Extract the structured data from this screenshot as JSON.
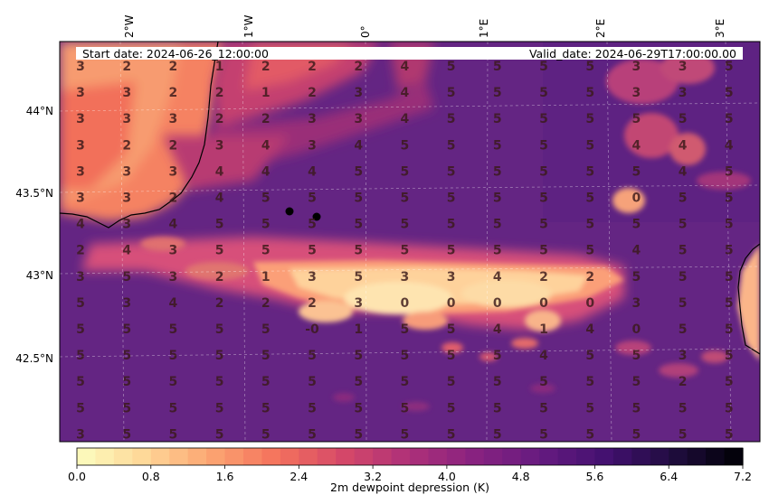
{
  "header": {
    "start_date": "Start date: 2024-06-26_12:00:00",
    "valid_date": "Valid_date: 2024-06-29T17:00:00.00"
  },
  "longitude_labels": [
    "2°W",
    "1°W",
    "0°",
    "1°E",
    "2°E",
    "3°E"
  ],
  "latitude_labels": [
    "44°N",
    "43.5°N",
    "43°N",
    "42.5°N"
  ],
  "grid_values": [
    [
      "3",
      "2",
      "2",
      "1",
      "2",
      "2",
      "2",
      "4",
      "5",
      "5",
      "5",
      "5",
      "3",
      "3",
      "5"
    ],
    [
      "3",
      "3",
      "2",
      "2",
      "1",
      "2",
      "3",
      "4",
      "5",
      "5",
      "5",
      "5",
      "3",
      "3",
      "5"
    ],
    [
      "3",
      "3",
      "3",
      "2",
      "2",
      "3",
      "3",
      "4",
      "5",
      "5",
      "5",
      "5",
      "5",
      "5",
      "5"
    ],
    [
      "3",
      "2",
      "2",
      "3",
      "4",
      "3",
      "4",
      "5",
      "5",
      "5",
      "5",
      "5",
      "4",
      "4",
      "4"
    ],
    [
      "3",
      "3",
      "3",
      "4",
      "4",
      "4",
      "5",
      "5",
      "5",
      "5",
      "5",
      "5",
      "5",
      "4",
      "5"
    ],
    [
      "3",
      "3",
      "2",
      "4",
      "5",
      "5",
      "5",
      "5",
      "5",
      "5",
      "5",
      "5",
      "0",
      "5",
      "5"
    ],
    [
      "4",
      "3",
      "4",
      "5",
      "5",
      "5",
      "5",
      "5",
      "5",
      "5",
      "5",
      "5",
      "5",
      "5",
      "5"
    ],
    [
      "2",
      "4",
      "3",
      "5",
      "5",
      "5",
      "5",
      "5",
      "5",
      "5",
      "5",
      "5",
      "4",
      "5",
      "5"
    ],
    [
      "3",
      "5",
      "3",
      "2",
      "1",
      "3",
      "5",
      "3",
      "3",
      "4",
      "2",
      "2",
      "5",
      "5",
      "5"
    ],
    [
      "5",
      "3",
      "4",
      "2",
      "2",
      "2",
      "3",
      "0",
      "0",
      "0",
      "0",
      "0",
      "3",
      "5",
      "5"
    ],
    [
      "5",
      "5",
      "5",
      "5",
      "5",
      "-0",
      "1",
      "5",
      "5",
      "4",
      "1",
      "4",
      "0",
      "5",
      "5"
    ],
    [
      "5",
      "5",
      "5",
      "5",
      "5",
      "5",
      "5",
      "5",
      "5",
      "5",
      "4",
      "5",
      "5",
      "3",
      "5"
    ],
    [
      "5",
      "5",
      "5",
      "5",
      "5",
      "5",
      "5",
      "5",
      "5",
      "5",
      "5",
      "5",
      "5",
      "2",
      "5"
    ],
    [
      "5",
      "5",
      "5",
      "5",
      "5",
      "5",
      "5",
      "5",
      "5",
      "5",
      "5",
      "5",
      "5",
      "5",
      "5"
    ],
    [
      "3",
      "5",
      "5",
      "5",
      "5",
      "5",
      "5",
      "5",
      "5",
      "5",
      "5",
      "5",
      "5",
      "5",
      "5"
    ]
  ],
  "colorbar": {
    "title": "2m dewpoint depression (K)",
    "min": 0.0,
    "max": 7.2,
    "step": 0.2,
    "tick_labels": [
      "0.0",
      "0.8",
      "1.6",
      "2.4",
      "3.2",
      "4.0",
      "4.8",
      "5.6",
      "6.4",
      "7.2"
    ],
    "colormap": "magma_r"
  },
  "colors": {
    "background_field": "#6a2a86",
    "dry_high": "#5c2280",
    "warm_land": "#f47a5c",
    "coast": "#000000"
  }
}
